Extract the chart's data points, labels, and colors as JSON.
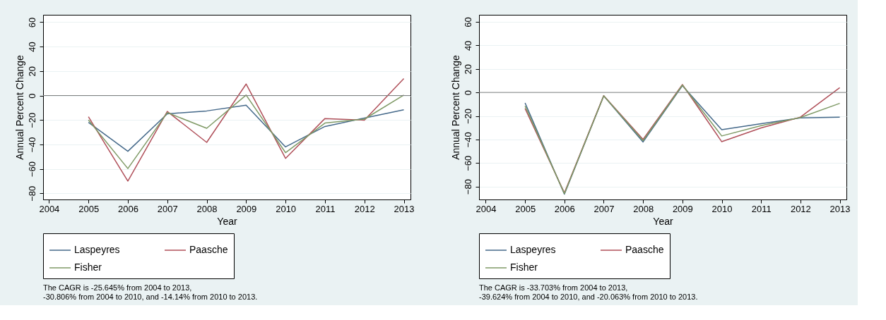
{
  "chart_data": [
    {
      "type": "line",
      "x": [
        2005,
        2006,
        2007,
        2008,
        2009,
        2010,
        2011,
        2012,
        2013
      ],
      "xlabel": "Year",
      "ylabel": "Annual Percent Change",
      "xlim": [
        2003.85,
        2013.17
      ],
      "xticks": [
        2004,
        2005,
        2006,
        2007,
        2008,
        2009,
        2010,
        2011,
        2012,
        2013
      ],
      "ylim": [
        -85,
        66
      ],
      "yticks": [
        -80,
        -60,
        -40,
        -20,
        0,
        20,
        40,
        60
      ],
      "grid": "y",
      "legend": "bottom",
      "ref_lines": [
        {
          "axis": "y",
          "value": 0,
          "color": "#808080"
        }
      ],
      "series": [
        {
          "name": "Laspeyres",
          "color": "#45698a",
          "values": [
            -22,
            -45.6,
            -15,
            -12.6,
            -7.9,
            -42,
            -25.3,
            -18.4,
            -11.6
          ]
        },
        {
          "name": "Paasche",
          "color": "#b0505a",
          "values": [
            -17.3,
            -70,
            -13,
            -38.3,
            9.4,
            -51.4,
            -18.8,
            -20.1,
            13.9
          ]
        },
        {
          "name": "Fisher",
          "color": "#7f9a66",
          "values": [
            -20,
            -59.7,
            -14,
            -26.8,
            0.4,
            -46.7,
            -22.5,
            -19.3,
            0.4
          ]
        }
      ],
      "annotations": [
        "The CAGR is -25.645% from 2004 to 2013,\n-30.806% from 2004 to 2010, and -14.14% from 2010 to 2013."
      ]
    },
    {
      "type": "line",
      "x": [
        2005,
        2006,
        2007,
        2008,
        2009,
        2010,
        2011,
        2012,
        2013
      ],
      "xlabel": "Year",
      "ylabel": "Annual Percent Change",
      "xlim": [
        2003.83,
        2013.17
      ],
      "xticks": [
        2004,
        2005,
        2006,
        2007,
        2008,
        2009,
        2010,
        2011,
        2012,
        2013
      ],
      "ylim": [
        -91,
        66
      ],
      "yticks": [
        -80,
        -60,
        -40,
        -20,
        0,
        20,
        40,
        60
      ],
      "grid": "y",
      "legend": "bottom",
      "ref_lines": [
        {
          "axis": "y",
          "value": 0,
          "color": "#808080"
        }
      ],
      "series": [
        {
          "name": "Laspeyres",
          "color": "#45698a",
          "values": [
            -8.9,
            -86.5,
            -2.9,
            -42.1,
            5.8,
            -31.7,
            -26.6,
            -21.7,
            -21
          ]
        },
        {
          "name": "Paasche",
          "color": "#b0505a",
          "values": [
            -13.7,
            -85.4,
            -2.7,
            -39.9,
            6.7,
            -41.9,
            -30.2,
            -21,
            4
          ]
        },
        {
          "name": "Fisher",
          "color": "#7f9a66",
          "values": [
            -11.5,
            -86,
            -2.9,
            -41,
            6.2,
            -37,
            -28.2,
            -21.3,
            -9.3
          ]
        }
      ],
      "annotations": [
        "The CAGR is -33.703% from 2004 to 2013,\n-39.624% from 2004 to 2010, and -20.063% from 2010 to 2013."
      ]
    }
  ]
}
